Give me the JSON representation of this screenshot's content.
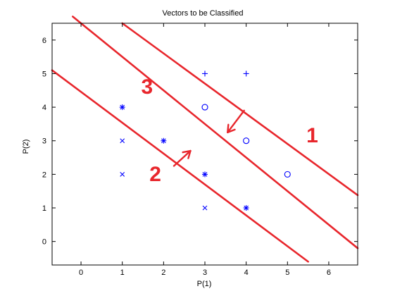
{
  "chart_data": {
    "type": "scatter",
    "title": "Vectors to be Classified",
    "xlabel": "P(1)",
    "ylabel": "P(2)",
    "xlim": [
      -0.7,
      6.7
    ],
    "ylim": [
      -0.7,
      6.5
    ],
    "xticks": [
      0,
      1,
      2,
      3,
      4,
      5,
      6
    ],
    "yticks": [
      0,
      1,
      2,
      3,
      4,
      5,
      6
    ],
    "grid": false,
    "series": [
      {
        "marker": "plus",
        "color": "#0000ff",
        "points": [
          [
            3,
            5
          ],
          [
            4,
            5
          ]
        ]
      },
      {
        "marker": "circle",
        "color": "#0000ff",
        "points": [
          [
            3,
            4
          ],
          [
            4,
            3
          ],
          [
            5,
            2
          ]
        ]
      },
      {
        "marker": "asterisk",
        "color": "#0000ff",
        "points": [
          [
            1,
            4
          ],
          [
            2,
            3
          ],
          [
            3,
            2
          ],
          [
            4,
            1
          ]
        ]
      },
      {
        "marker": "x",
        "color": "#0000ff",
        "points": [
          [
            1,
            3
          ],
          [
            1,
            2
          ],
          [
            3,
            1
          ]
        ]
      }
    ],
    "annotations": {
      "color": "#e8262c",
      "lines": [
        {
          "from": [
            1,
            6.5
          ],
          "to": [
            6.7,
            1.38
          ]
        },
        {
          "from": [
            -0.2,
            6.7
          ],
          "to": [
            6.7,
            -0.2
          ]
        },
        {
          "from": [
            -0.7,
            5.1
          ],
          "to": [
            5.5,
            -0.6
          ]
        }
      ],
      "arrows": [
        {
          "from": [
            3.95,
            3.9
          ],
          "to": [
            3.55,
            3.25
          ]
        },
        {
          "from": [
            2.25,
            2.25
          ],
          "to": [
            2.65,
            2.7
          ]
        }
      ],
      "labels": [
        {
          "text": "1",
          "at": [
            5.6,
            2.95
          ]
        },
        {
          "text": "2",
          "at": [
            1.8,
            1.8
          ]
        },
        {
          "text": "3",
          "at": [
            1.6,
            4.4
          ]
        }
      ]
    }
  }
}
